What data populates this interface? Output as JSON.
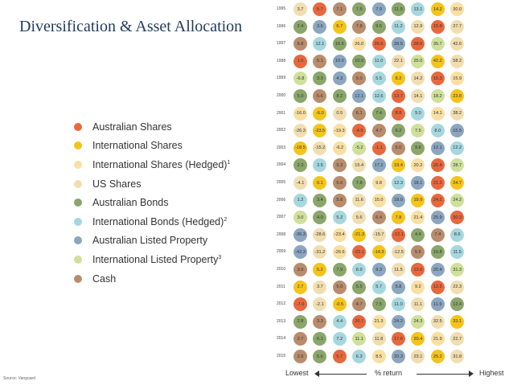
{
  "title": "Diversification & Asset Allocation",
  "source": "Source: Vanguard",
  "colors": {
    "AS": "#e8683d",
    "IS": "#f4c41b",
    "ISH": "#f9dfa1",
    "US": "#f1deb0",
    "AB": "#8aa66a",
    "IBH": "#a6d7de",
    "ALP": "#8ba6c0",
    "ILP": "#cfe09a",
    "C": "#b88c6c"
  },
  "legend": [
    {
      "key": "AS",
      "label": "Australian Shares",
      "sup": ""
    },
    {
      "key": "IS",
      "label": "International Shares",
      "sup": ""
    },
    {
      "key": "ISH",
      "label": "International Shares (Hedged)",
      "sup": "1"
    },
    {
      "key": "US",
      "label": "US Shares",
      "sup": ""
    },
    {
      "key": "AB",
      "label": "Australian Bonds",
      "sup": ""
    },
    {
      "key": "IBH",
      "label": "International Bonds (Hedged)",
      "sup": "2"
    },
    {
      "key": "ALP",
      "label": "Australian Listed Property",
      "sup": ""
    },
    {
      "key": "ILP",
      "label": "International Listed Property",
      "sup": "3"
    },
    {
      "key": "C",
      "label": "Cash",
      "sup": ""
    }
  ],
  "axis": {
    "low": "Lowest",
    "mid": "% return",
    "high": "Highest"
  },
  "chart_data": {
    "type": "table",
    "years": [
      "1995",
      "1996",
      "1997",
      "1998",
      "1999",
      "2000",
      "2001",
      "2002",
      "2003",
      "2004",
      "2005",
      "2006",
      "2007",
      "2008",
      "2009",
      "2010",
      "2011",
      "2012",
      "2013",
      "2014",
      "2015"
    ],
    "rows": [
      [
        [
          "3.7",
          "US"
        ],
        [
          "5.7",
          "AS"
        ],
        [
          "7.1",
          "C"
        ],
        [
          "7.5",
          "AB"
        ],
        [
          "7.9",
          "ALP"
        ],
        [
          "11.9",
          "AB"
        ],
        [
          "13.1",
          "IBH"
        ],
        [
          "14.2",
          "IS"
        ],
        [
          "30.0",
          "ISH"
        ]
      ],
      [
        [
          "2.4",
          "AB"
        ],
        [
          "3.6",
          "ALP"
        ],
        [
          "6.7",
          "IS"
        ],
        [
          "7.8",
          "C"
        ],
        [
          "9.5",
          "AB"
        ],
        [
          "11.2",
          "IBH"
        ],
        [
          "12.9",
          "US"
        ],
        [
          "15.8",
          "AS"
        ],
        [
          "27.7",
          "US"
        ]
      ],
      [
        [
          "6.8",
          "C"
        ],
        [
          "12.1",
          "IBH"
        ],
        [
          "16.6",
          "AB"
        ],
        [
          "26.0",
          "ISH"
        ],
        [
          "26.6",
          "AS"
        ],
        [
          "28.5",
          "ALP"
        ],
        [
          "28.6",
          "AS"
        ],
        [
          "35.7",
          "ILP"
        ],
        [
          "42.6",
          "US"
        ]
      ],
      [
        [
          "1.6",
          "AS"
        ],
        [
          "5.1",
          "C"
        ],
        [
          "10.0",
          "ALP"
        ],
        [
          "10.9",
          "AB"
        ],
        [
          "11.0",
          "IBH"
        ],
        [
          "22.1",
          "US"
        ],
        [
          "25.0",
          "ILP"
        ],
        [
          "42.2",
          "IS"
        ],
        [
          "58.2",
          "US"
        ]
      ],
      [
        [
          "-6.8",
          "ILP"
        ],
        [
          "3.3",
          "AB"
        ],
        [
          "4.3",
          "ALP"
        ],
        [
          "5.0",
          "C"
        ],
        [
          "5.5",
          "IBH"
        ],
        [
          "8.2",
          "IS"
        ],
        [
          "14.2",
          "US"
        ],
        [
          "15.3",
          "AS"
        ],
        [
          "15.9",
          "ISH"
        ]
      ],
      [
        [
          "5.0",
          "AB"
        ],
        [
          "5.6",
          "C"
        ],
        [
          "8.2",
          "AB"
        ],
        [
          "12.1",
          "ALP"
        ],
        [
          "12.6",
          "IBH"
        ],
        [
          "13.7",
          "AS"
        ],
        [
          "14.1",
          "US"
        ],
        [
          "18.2",
          "ILP"
        ],
        [
          "23.8",
          "IS"
        ]
      ],
      [
        [
          "-16.0",
          "ISH"
        ],
        [
          "-6.0",
          "IS"
        ],
        [
          "0.5",
          "US"
        ],
        [
          "6.1",
          "C"
        ],
        [
          "7.4",
          "AB"
        ],
        [
          "8.8",
          "AS"
        ],
        [
          "9.0",
          "IBH"
        ],
        [
          "14.1",
          "ISH"
        ],
        [
          "38.2",
          "US"
        ]
      ],
      [
        [
          "-26.3",
          "US"
        ],
        [
          "-23.5",
          "IS"
        ],
        [
          "-19.3",
          "ISH"
        ],
        [
          "-4.5",
          "AS"
        ],
        [
          "4.7",
          "C"
        ],
        [
          "6.2",
          "AB"
        ],
        [
          "7.5",
          "ILP"
        ],
        [
          "8.0",
          "IBH"
        ],
        [
          "15.5",
          "ALP"
        ]
      ],
      [
        [
          "-18.5",
          "IS"
        ],
        [
          "-15.2",
          "US"
        ],
        [
          "-6.2",
          "ISH"
        ],
        [
          "-5.2",
          "ILP"
        ],
        [
          "-1.1",
          "AS"
        ],
        [
          "5.0",
          "C"
        ],
        [
          "9.8",
          "AB"
        ],
        [
          "12.1",
          "ALP"
        ],
        [
          "12.2",
          "IBH"
        ]
      ],
      [
        [
          "2.3",
          "AB"
        ],
        [
          "3.5",
          "IBH"
        ],
        [
          "5.3",
          "C"
        ],
        [
          "15.4",
          "US"
        ],
        [
          "17.2",
          "ALP"
        ],
        [
          "19.4",
          "IS"
        ],
        [
          "20.2",
          "ISH"
        ],
        [
          "20.4",
          "AS"
        ],
        [
          "28.7",
          "ILP"
        ]
      ],
      [
        [
          "-4.1",
          "US"
        ],
        [
          "0.1",
          "IS"
        ],
        [
          "5.6",
          "C"
        ],
        [
          "7.8",
          "AB"
        ],
        [
          "9.8",
          "ISH"
        ],
        [
          "12.3",
          "IBH"
        ],
        [
          "18.1",
          "ALP"
        ],
        [
          "21.2",
          "AS"
        ],
        [
          "24.7",
          "IS"
        ]
      ],
      [
        [
          "1.2",
          "IBH"
        ],
        [
          "3.4",
          "AB"
        ],
        [
          "5.8",
          "C"
        ],
        [
          "11.6",
          "US"
        ],
        [
          "15.0",
          "ISH"
        ],
        [
          "18.0",
          "ALP"
        ],
        [
          "19.9",
          "IS"
        ],
        [
          "24.2",
          "AS"
        ],
        [
          "24.2",
          "ILP"
        ]
      ],
      [
        [
          "3.0",
          "ILP"
        ],
        [
          "4.0",
          "AB"
        ],
        [
          "5.2",
          "IBH"
        ],
        [
          "5.6",
          "US"
        ],
        [
          "6.4",
          "C"
        ],
        [
          "7.8",
          "IS"
        ],
        [
          "21.4",
          "ISH"
        ],
        [
          "25.9",
          "ALP"
        ],
        [
          "30.3",
          "AS"
        ]
      ],
      [
        [
          "-36.3",
          "ALP"
        ],
        [
          "-28.6",
          "US"
        ],
        [
          "-23.4",
          "ISH"
        ],
        [
          "-21.3",
          "IS"
        ],
        [
          "-15.7",
          "US"
        ],
        [
          "-12.1",
          "AS"
        ],
        [
          "4.4",
          "AB"
        ],
        [
          "7.4",
          "C"
        ],
        [
          "8.6",
          "IBH"
        ]
      ],
      [
        [
          "-42.3",
          "ALP"
        ],
        [
          "-31.2",
          "US"
        ],
        [
          "-26.6",
          "ISH"
        ],
        [
          "-22.1",
          "AS"
        ],
        [
          "-14.3",
          "IS"
        ],
        [
          "-12.5",
          "US"
        ],
        [
          "5.5",
          "C"
        ],
        [
          "10.8",
          "AB"
        ],
        [
          "11.5",
          "IBH"
        ]
      ],
      [
        [
          "3.9",
          "C"
        ],
        [
          "5.2",
          "IS"
        ],
        [
          "7.9",
          "AB"
        ],
        [
          "8.9",
          "IBH"
        ],
        [
          "9.3",
          "ALP"
        ],
        [
          "11.5",
          "US"
        ],
        [
          "13.6",
          "AS"
        ],
        [
          "20.4",
          "ALP"
        ],
        [
          "31.3",
          "ILP"
        ]
      ],
      [
        [
          "2.7",
          "IS"
        ],
        [
          "3.7",
          "US"
        ],
        [
          "5.0",
          "C"
        ],
        [
          "5.5",
          "AB"
        ],
        [
          "5.7",
          "IBH"
        ],
        [
          "5.8",
          "ALP"
        ],
        [
          "9.2",
          "ISH"
        ],
        [
          "12.2",
          "AS"
        ],
        [
          "22.3",
          "US"
        ]
      ],
      [
        [
          "-7.0",
          "AS"
        ],
        [
          "-2.1",
          "US"
        ],
        [
          "-0.5",
          "IS"
        ],
        [
          "4.7",
          "C"
        ],
        [
          "7.5",
          "AB"
        ],
        [
          "11.0",
          "IBH"
        ],
        [
          "11.1",
          "US"
        ],
        [
          "11.9",
          "ALP"
        ],
        [
          "12.4",
          "AB"
        ]
      ],
      [
        [
          "2.8",
          "AB"
        ],
        [
          "3.3",
          "C"
        ],
        [
          "4.4",
          "IBH"
        ],
        [
          "20.7",
          "AS"
        ],
        [
          "21.3",
          "ISH"
        ],
        [
          "24.2",
          "ALP"
        ],
        [
          "24.3",
          "ILP"
        ],
        [
          "32.5",
          "US"
        ],
        [
          "33.1",
          "IS"
        ]
      ],
      [
        [
          "2.7",
          "C"
        ],
        [
          "6.1",
          "AB"
        ],
        [
          "7.2",
          "IBH"
        ],
        [
          "11.1",
          "ILP"
        ],
        [
          "11.8",
          "US"
        ],
        [
          "17.6",
          "AS"
        ],
        [
          "20.4",
          "IS"
        ],
        [
          "21.9",
          "ISH"
        ],
        [
          "22.7",
          "US"
        ]
      ],
      [
        [
          "2.6",
          "C"
        ],
        [
          "5.6",
          "AB"
        ],
        [
          "5.7",
          "AS"
        ],
        [
          "6.3",
          "IBH"
        ],
        [
          "8.5",
          "ISH"
        ],
        [
          "20.3",
          "ALP"
        ],
        [
          "23.1",
          "US"
        ],
        [
          "25.2",
          "IS"
        ],
        [
          "31.8",
          "US"
        ]
      ]
    ]
  }
}
